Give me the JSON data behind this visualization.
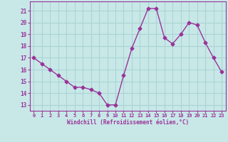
{
  "x": [
    0,
    1,
    2,
    3,
    4,
    5,
    6,
    7,
    8,
    9,
    10,
    11,
    12,
    13,
    14,
    15,
    16,
    17,
    18,
    19,
    20,
    21,
    22,
    23
  ],
  "y": [
    17.0,
    16.5,
    16.0,
    15.5,
    15.0,
    14.5,
    14.5,
    14.3,
    14.0,
    13.0,
    13.0,
    15.5,
    17.8,
    19.5,
    21.2,
    21.2,
    18.7,
    18.2,
    19.0,
    20.0,
    19.8,
    18.3,
    17.0,
    15.8
  ],
  "line_color": "#993399",
  "marker": "D",
  "marker_size": 2.5,
  "bg_color": "#c8e8e8",
  "grid_color": "#aad4d4",
  "xlabel": "Windchill (Refroidissement éolien,°C)",
  "xlabel_color": "#993399",
  "tick_color": "#993399",
  "label_color": "#993399",
  "ylim": [
    12.5,
    21.8
  ],
  "xlim": [
    -0.5,
    23.5
  ],
  "yticks": [
    13,
    14,
    15,
    16,
    17,
    18,
    19,
    20,
    21
  ],
  "xticks": [
    0,
    1,
    2,
    3,
    4,
    5,
    6,
    7,
    8,
    9,
    10,
    11,
    12,
    13,
    14,
    15,
    16,
    17,
    18,
    19,
    20,
    21,
    22,
    23
  ],
  "spine_color": "#993399"
}
